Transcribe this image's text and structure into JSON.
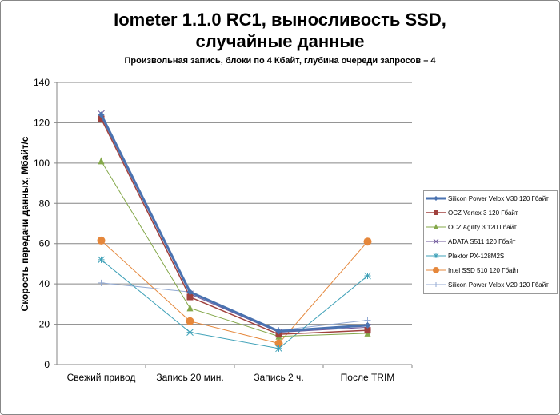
{
  "chart_data": {
    "type": "line",
    "title_line1": "Iometer 1.1.0 RC1, выносливость SSD,",
    "title_line2": "случайные данные",
    "subtitle": "Произвольная  запись, блоки по 4 Кбайт, глубина очереди запросов – 4",
    "ylabel": "Скорость  передачи данных, Мбайт/с",
    "xlabel": "",
    "ylim": [
      0,
      140
    ],
    "yticks": [
      "0",
      "20",
      "40",
      "60",
      "80",
      "100",
      "120",
      "140"
    ],
    "categories": [
      "Свежий  привод",
      "Запись 20 мин.",
      "Запись 2 ч.",
      "После TRIM"
    ],
    "grid": true,
    "legend_position": "right",
    "series": [
      {
        "name": "Silicon Power Velox V30 120 Гбайт",
        "color": "#4a72b0",
        "marker": "diamond",
        "width": 3,
        "values": [
          124,
          36,
          16.5,
          19.5
        ]
      },
      {
        "name": "OCZ Vertex 3 120 Гбайт",
        "color": "#a0413e",
        "marker": "square",
        "width": 1.5,
        "values": [
          122,
          33.5,
          15,
          17
        ]
      },
      {
        "name": "OCZ Agility 3 120 Гбайт",
        "color": "#84a84a",
        "marker": "triangle",
        "width": 1,
        "values": [
          101,
          28,
          14,
          15.5
        ]
      },
      {
        "name": "ADATA S511 120 Гбайт",
        "color": "#6e579a",
        "marker": "x",
        "width": 1,
        "values": [
          124.5,
          35,
          16,
          18.5
        ]
      },
      {
        "name": "Plextor PX-128M2S",
        "color": "#3fa1b8",
        "marker": "star",
        "width": 1,
        "values": [
          52,
          16,
          8,
          44
        ]
      },
      {
        "name": "Intel SSD 510 120 Гбайт",
        "color": "#e5873b",
        "marker": "circle",
        "width": 1,
        "values": [
          61.5,
          21.5,
          10.5,
          61
        ]
      },
      {
        "name": "Silicon Power Velox V20 120 Гбайт",
        "color": "#93aad3",
        "marker": "plus",
        "width": 1,
        "values": [
          40.5,
          36,
          17,
          22
        ]
      }
    ]
  }
}
